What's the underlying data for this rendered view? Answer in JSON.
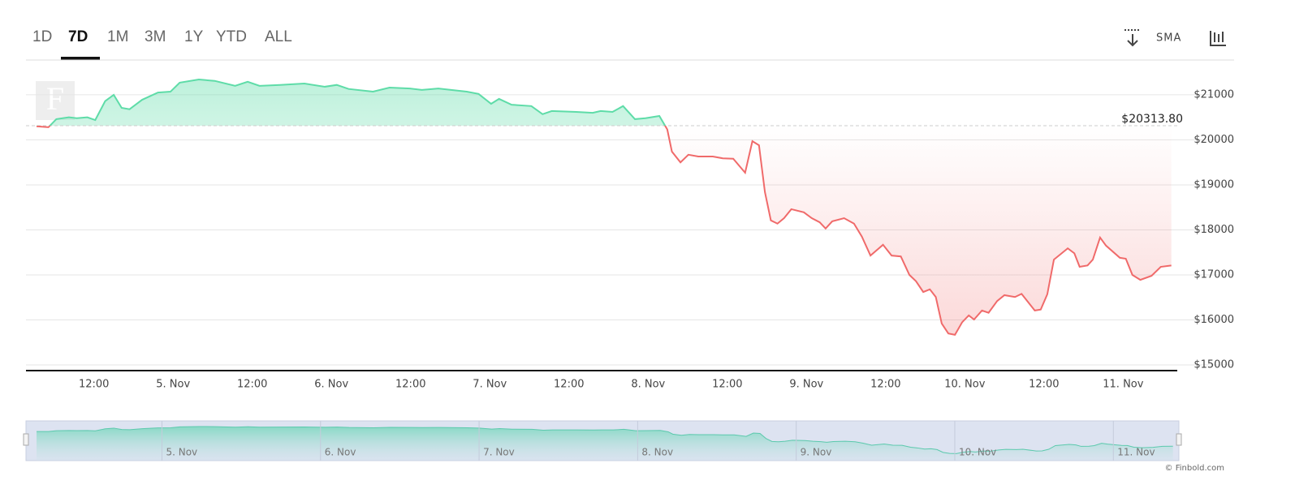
{
  "toolbar": {
    "ranges": [
      "1D",
      "7D",
      "1M",
      "3M",
      "1Y",
      "YTD",
      "ALL"
    ],
    "active_index": 1,
    "sma": "SMA"
  },
  "chart_data": {
    "type": "area",
    "watermark": "F",
    "credit": "© Finbold.com",
    "baseline": {
      "value": 20313.8,
      "label": "$20313.80"
    },
    "colors": {
      "up": "#5edca8",
      "down": "#f06a6a"
    },
    "x": [
      3.3,
      5.1,
      6.3,
      8.2,
      9.4,
      11.0,
      12.2,
      13.7,
      15.0,
      16.2,
      17.4,
      19.3,
      21.7,
      23.6,
      25.0,
      27.9,
      30.3,
      33.4,
      35.3,
      37.1,
      40.2,
      43.9,
      47.0,
      48.8,
      50.6,
      54.3,
      56.8,
      59.9,
      61.7,
      64.2,
      68.5,
      70.3,
      72.2,
      73.4,
      75.3,
      78.3,
      80.0,
      81.4,
      85.1,
      87.6,
      88.8,
      90.6,
      92.2,
      94.0,
      95.6,
      97.7,
      98.9,
      99.6,
      100.9,
      102.1,
      103.6,
      105.8,
      107.3,
      108.9,
      110.7,
      111.8,
      112.8,
      113.7,
      114.6,
      115.6,
      116.6,
      117.7,
      119.6,
      120.8,
      122.0,
      122.9,
      123.9,
      125.7,
      127.2,
      128.4,
      129.7,
      131.6,
      132.9,
      134.3,
      135.6,
      136.6,
      137.7,
      138.7,
      139.6,
      140.5,
      141.5,
      142.5,
      143.6,
      144.6,
      145.4,
      146.6,
      147.6,
      148.9,
      150.0,
      151.6,
      152.6,
      154.6,
      155.5,
      156.5,
      157.5,
      159.6,
      160.6,
      161.4,
      162.6,
      163.4,
      164.5,
      165.4,
      167.5,
      168.4,
      169.4,
      170.6,
      172.3,
      173.7,
      175.3
    ],
    "values": [
      20300,
      20280,
      20460,
      20500,
      20480,
      20500,
      20440,
      20860,
      21000,
      20710,
      20680,
      20890,
      21050,
      21070,
      21270,
      21340,
      21310,
      21200,
      21290,
      21200,
      21220,
      21250,
      21180,
      21220,
      21130,
      21070,
      21160,
      21140,
      21110,
      21140,
      21070,
      21020,
      20800,
      20910,
      20780,
      20750,
      20570,
      20640,
      20620,
      20600,
      20640,
      20620,
      20750,
      20460,
      20480,
      20530,
      20230,
      19740,
      19500,
      19670,
      19630,
      19630,
      19590,
      19580,
      19270,
      19970,
      19880,
      18840,
      18210,
      18140,
      18260,
      18460,
      18390,
      18260,
      18170,
      18030,
      18190,
      18260,
      18140,
      17850,
      17430,
      17670,
      17430,
      17410,
      17000,
      16860,
      16620,
      16680,
      16510,
      15920,
      15700,
      15670,
      15950,
      16100,
      16010,
      16210,
      16160,
      16420,
      16550,
      16510,
      16580,
      16210,
      16230,
      16570,
      17340,
      17590,
      17480,
      17180,
      17210,
      17340,
      17830,
      17650,
      17380,
      17360,
      17000,
      16890,
      16980,
      17180,
      17210
    ],
    "xlim": [
      1.7,
      176.2
    ],
    "ylim": [
      14875,
      21755
    ],
    "xticks": [
      {
        "value": 12,
        "label": "12:00"
      },
      {
        "value": 24,
        "label": "5. Nov"
      },
      {
        "value": 36,
        "label": "12:00"
      },
      {
        "value": 48,
        "label": "6. Nov"
      },
      {
        "value": 60,
        "label": "12:00"
      },
      {
        "value": 72,
        "label": "7. Nov"
      },
      {
        "value": 84,
        "label": "12:00"
      },
      {
        "value": 96,
        "label": "8. Nov"
      },
      {
        "value": 108,
        "label": "12:00"
      },
      {
        "value": 120,
        "label": "9. Nov"
      },
      {
        "value": 132,
        "label": "12:00"
      },
      {
        "value": 144,
        "label": "10. Nov"
      },
      {
        "value": 156,
        "label": "12:00"
      },
      {
        "value": 168,
        "label": "11. Nov"
      }
    ],
    "yticks": [
      {
        "value": 15000,
        "label": "$15000"
      },
      {
        "value": 16000,
        "label": "$16000"
      },
      {
        "value": 17000,
        "label": "$17000"
      },
      {
        "value": 18000,
        "label": "$18000"
      },
      {
        "value": 19000,
        "label": "$19000"
      },
      {
        "value": 20000,
        "label": "$20000"
      },
      {
        "value": 21000,
        "label": "$21000"
      }
    ],
    "grid": true
  }
}
